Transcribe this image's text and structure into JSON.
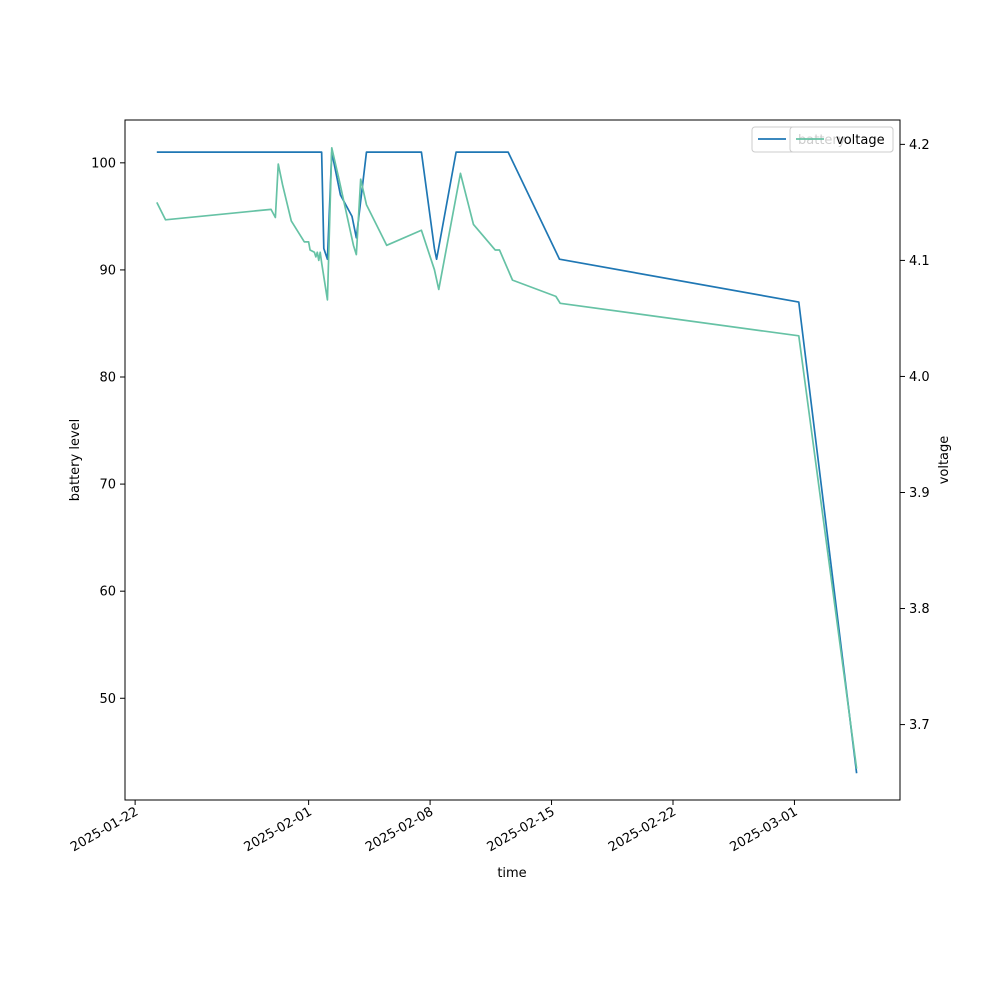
{
  "chart_data": {
    "type": "line",
    "xlabel": "time",
    "ylabel_left": "battery level",
    "ylabel_right": "voltage",
    "x_ticks": [
      "2025-01-22",
      "2025-02-01",
      "2025-02-08",
      "2025-02-15",
      "2025-02-22",
      "2025-03-01"
    ],
    "y_left_ticks": [
      50,
      60,
      70,
      80,
      90,
      100
    ],
    "y_right_ticks": [
      3.7,
      3.8,
      3.9,
      4.0,
      4.1,
      4.2
    ],
    "x_range": [
      "2025-01-21T10:00",
      "2025-03-07T02:00"
    ],
    "y_left_range": [
      40.5,
      104.0
    ],
    "y_right_range": [
      3.635,
      4.221
    ],
    "legend": {
      "location": "upper right",
      "entries": [
        "battery",
        "voltage"
      ]
    },
    "series": [
      {
        "name": "battery",
        "axis": "left",
        "color": "#1f77b4",
        "points": [
          [
            "2025-01-23T06:00",
            101
          ],
          [
            "2025-02-01T18:00",
            101
          ],
          [
            "2025-02-01T21:00",
            92
          ],
          [
            "2025-02-02T02:00",
            91
          ],
          [
            "2025-02-02T08:00",
            101
          ],
          [
            "2025-02-02T20:00",
            97
          ],
          [
            "2025-02-03T12:00",
            95
          ],
          [
            "2025-02-03T18:00",
            93
          ],
          [
            "2025-02-04T08:00",
            101
          ],
          [
            "2025-02-07T12:00",
            101
          ],
          [
            "2025-02-08T06:00",
            92
          ],
          [
            "2025-02-08T09:00",
            91
          ],
          [
            "2025-02-09T12:00",
            101
          ],
          [
            "2025-02-12T12:00",
            101
          ],
          [
            "2025-02-15T11:00",
            91
          ],
          [
            "2025-03-01T06:00",
            87
          ],
          [
            "2025-03-04T14:00",
            43
          ]
        ]
      },
      {
        "name": "voltage",
        "axis": "right",
        "color": "#66c2a5",
        "points": [
          [
            "2025-01-23T06:00",
            4.15
          ],
          [
            "2025-01-23T18:00",
            4.135
          ],
          [
            "2025-01-29T20:00",
            4.144
          ],
          [
            "2025-01-30T02:00",
            4.137
          ],
          [
            "2025-01-30T06:00",
            4.183
          ],
          [
            "2025-01-30T12:00",
            4.165
          ],
          [
            "2025-01-31T00:00",
            4.134
          ],
          [
            "2025-01-31T18:00",
            4.116
          ],
          [
            "2025-02-01T00:00",
            4.116
          ],
          [
            "2025-02-01T02:00",
            4.109
          ],
          [
            "2025-02-01T08:00",
            4.107
          ],
          [
            "2025-02-01T10:00",
            4.103
          ],
          [
            "2025-02-01T12:00",
            4.107
          ],
          [
            "2025-02-01T14:00",
            4.1
          ],
          [
            "2025-02-01T16:00",
            4.107
          ],
          [
            "2025-02-01T18:00",
            4.098
          ],
          [
            "2025-02-02T02:00",
            4.066
          ],
          [
            "2025-02-02T08:00",
            4.197
          ],
          [
            "2025-02-02T18:00",
            4.17
          ],
          [
            "2025-02-03T14:00",
            4.113
          ],
          [
            "2025-02-03T18:00",
            4.105
          ],
          [
            "2025-02-04T00:00",
            4.17
          ],
          [
            "2025-02-04T08:00",
            4.148
          ],
          [
            "2025-02-05T12:00",
            4.113
          ],
          [
            "2025-02-07T12:00",
            4.126
          ],
          [
            "2025-02-08T06:00",
            4.092
          ],
          [
            "2025-02-08T12:00",
            4.075
          ],
          [
            "2025-02-09T18:00",
            4.175
          ],
          [
            "2025-02-10T12:00",
            4.131
          ],
          [
            "2025-02-11T18:00",
            4.109
          ],
          [
            "2025-02-12T00:00",
            4.109
          ],
          [
            "2025-02-12T18:00",
            4.083
          ],
          [
            "2025-02-15T06:00",
            4.069
          ],
          [
            "2025-02-15T12:00",
            4.063
          ],
          [
            "2025-03-01T06:00",
            4.035
          ],
          [
            "2025-03-04T14:00",
            3.662
          ]
        ]
      }
    ]
  }
}
